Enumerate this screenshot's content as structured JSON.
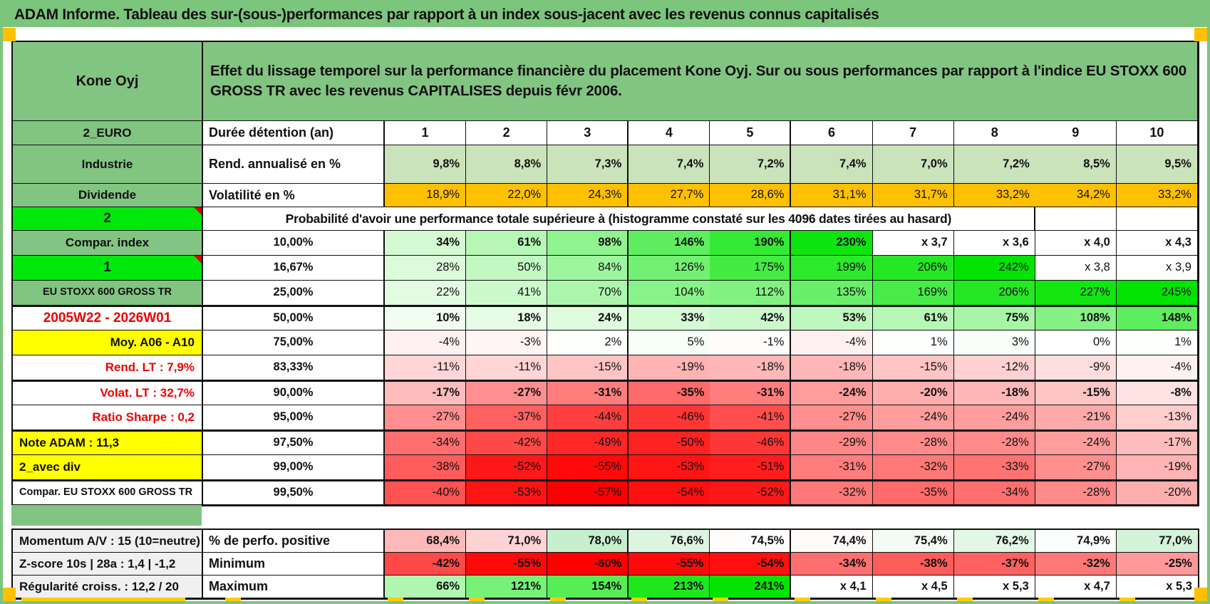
{
  "title": "ADAM Informe. Tableau des sur-(sous-)performances par rapport à un index sous-jacent avec les revenus connus capitalisés",
  "colors": {
    "banner_green": "#7CC57C",
    "cell_green": "#82C482",
    "bright_green": "#00E80B",
    "orange": "#FFC000",
    "yellow": "#FFFF00",
    "sage_green": "#A9C48E",
    "light_green_row": "#CBE3BA",
    "gray_label": "#F0F0F0",
    "heat_positive_max": "#00E400",
    "heat_negative_max": "#FF0000",
    "perf_positive": "#C6EFCE",
    "perf_negative": "#FFB9B9",
    "red_text": "#EE0000",
    "marker_orange": "#FFC000",
    "dash_yellow": "#FFCC00"
  },
  "sheet": {
    "corner_label": "Kone Oyj",
    "description": "Effet du lissage temporel sur la performance financière du placement Kone Oyj. Sur ou sous performances par rapport à l'indice EU STOXX 600 GROSS TR avec les revenus CAPITALISES depuis févr 2006.",
    "prob_banner": "Probabilité d'avoir une performance totale supérieure à (histogramme constaté sur les 4096 dates tirées au hasard)",
    "rows": [
      {
        "label": "2_EURO",
        "lcls": "green",
        "col2": "Durée détention (an)",
        "ccls": "p2lab",
        "vstyle": "colhead",
        "values": [
          "1",
          "2",
          "3",
          "4",
          "5",
          "6",
          "7",
          "8",
          "9",
          "10"
        ]
      },
      {
        "label": "Industrie",
        "lcls": "green",
        "col2": "Rend. annualisé en %",
        "ccls": "p2lab",
        "vstyle": "fixed",
        "vbg": "lgreen",
        "bold": true,
        "values": [
          "9,8%",
          "8,8%",
          "7,3%",
          "7,4%",
          "7,2%",
          "7,4%",
          "7,0%",
          "7,2%",
          "8,5%",
          "9,5%"
        ]
      },
      {
        "label": "Dividende",
        "lcls": "green",
        "col2": "Volatilité en %",
        "ccls": "p2lab",
        "vstyle": "fixed",
        "vbg": "orangebg",
        "bold": false,
        "values": [
          "18,9%",
          "22,0%",
          "24,3%",
          "27,7%",
          "28,6%",
          "31,1%",
          "31,7%",
          "33,2%",
          "34,2%",
          "33,2%"
        ]
      },
      {
        "type": "banner",
        "label": "2",
        "lcls": "bright",
        "marker": true
      },
      {
        "label": "Compar. index",
        "lcls": "green",
        "col2": "10,00%",
        "ccls": "p2pct orangebg",
        "bold": true,
        "vstyle": "heat",
        "values": [
          "34%",
          "61%",
          "98%",
          "146%",
          "190%",
          "230%",
          "x 3,7",
          "x 3,6",
          "x 4,0",
          "x 4,3"
        ]
      },
      {
        "label": "1",
        "lcls": "bright",
        "marker": true,
        "col2": "16,67%",
        "ccls": "p2pct",
        "vstyle": "heat",
        "values": [
          "28%",
          "50%",
          "84%",
          "126%",
          "175%",
          "199%",
          "206%",
          "242%",
          "x 3,8",
          "x 3,9"
        ]
      },
      {
        "label": "EU STOXX 600 GROSS TR",
        "lcls": "green small",
        "col2": "25,00%",
        "ccls": "p2pct",
        "vstyle": "heat",
        "values": [
          "22%",
          "41%",
          "70%",
          "104%",
          "112%",
          "135%",
          "169%",
          "206%",
          "227%",
          "245%"
        ]
      },
      {
        "label": "2005W22 - 2026W01",
        "lcls": "redtxt big",
        "col2": "50,00%",
        "ccls": "p2pct sage big",
        "bold": true,
        "thick": true,
        "vstyle": "heat",
        "values": [
          "10%",
          "18%",
          "24%",
          "33%",
          "42%",
          "53%",
          "61%",
          "75%",
          "108%",
          "148%"
        ]
      },
      {
        "label": "Moy. A06 - A10",
        "lcls": "yellow rightlab",
        "col2": "75,00%",
        "ccls": "p2pct",
        "vstyle": "heat",
        "values": [
          "-4%",
          "-3%",
          "2%",
          "5%",
          "-1%",
          "-4%",
          "1%",
          "3%",
          "0%",
          "1%"
        ]
      },
      {
        "label": "Rend. LT :   7,9%",
        "lcls": "redtxt rightlab",
        "col2": "83,33%",
        "ccls": "p2pct",
        "vstyle": "heat",
        "values": [
          "-11%",
          "-11%",
          "-15%",
          "-19%",
          "-18%",
          "-18%",
          "-15%",
          "-12%",
          "-9%",
          "-4%"
        ]
      },
      {
        "label": "Volat. LT :   32,7%",
        "lcls": "redtxt rightlab",
        "col2": "90,00%",
        "ccls": "p2pct orangebg",
        "bold": true,
        "thick": true,
        "vstyle": "heat",
        "values": [
          "-17%",
          "-27%",
          "-31%",
          "-35%",
          "-31%",
          "-24%",
          "-20%",
          "-18%",
          "-15%",
          "-8%"
        ]
      },
      {
        "label": "Ratio Sharpe :   0,2",
        "lcls": "redtxt rightlab",
        "col2": "95,00%",
        "ccls": "p2pct",
        "vstyle": "heat",
        "values": [
          "-27%",
          "-37%",
          "-44%",
          "-46%",
          "-41%",
          "-27%",
          "-24%",
          "-24%",
          "-21%",
          "-13%"
        ]
      },
      {
        "label": "Note ADAM : 11,3",
        "lcls": "yellow leftlab",
        "col2": "97,50%",
        "ccls": "p2pct",
        "thick": true,
        "vstyle": "heat",
        "values": [
          "-34%",
          "-42%",
          "-49%",
          "-50%",
          "-46%",
          "-29%",
          "-28%",
          "-28%",
          "-24%",
          "-17%"
        ]
      },
      {
        "label": "2_avec div",
        "lcls": "yellow leftlab",
        "col2": "99,00%",
        "ccls": "p2pct",
        "vstyle": "heat",
        "values": [
          "-38%",
          "-52%",
          "-55%",
          "-53%",
          "-51%",
          "-31%",
          "-32%",
          "-33%",
          "-27%",
          "-19%"
        ]
      },
      {
        "label": "Compar. EU STOXX 600 GROSS TR",
        "lcls": "leftlab small nowrap",
        "col2": "99,50%",
        "ccls": "p2pct",
        "thick": true,
        "vstyle": "heat",
        "values": [
          "-40%",
          "-53%",
          "-57%",
          "-54%",
          "-52%",
          "-32%",
          "-35%",
          "-34%",
          "-28%",
          "-20%"
        ]
      }
    ],
    "bottom_rows": [
      {
        "label": "Momentum A/V : 15 (10=neutre)",
        "col2": "% de perfo. positive",
        "vstyle": "perf",
        "bold": true,
        "values": [
          "68,4%",
          "71,0%",
          "78,0%",
          "76,6%",
          "74,5%",
          "74,4%",
          "75,4%",
          "76,2%",
          "74,9%",
          "77,0%"
        ]
      },
      {
        "label": "Z-score 10s | 28a : 1,4 | -1,2",
        "col2": "Minimum",
        "vstyle": "heat",
        "bold": true,
        "values": [
          "-42%",
          "-55%",
          "-60%",
          "-55%",
          "-54%",
          "-34%",
          "-38%",
          "-37%",
          "-32%",
          "-25%"
        ]
      },
      {
        "label": "Régularité croiss. : 12,2 / 20",
        "col2": "Maximum",
        "vstyle": "heat",
        "bold": true,
        "values": [
          "66%",
          "121%",
          "154%",
          "213%",
          "241%",
          "x 4,1",
          "x 4,5",
          "x 5,3",
          "x 4,7",
          "x 5,3"
        ]
      }
    ]
  }
}
